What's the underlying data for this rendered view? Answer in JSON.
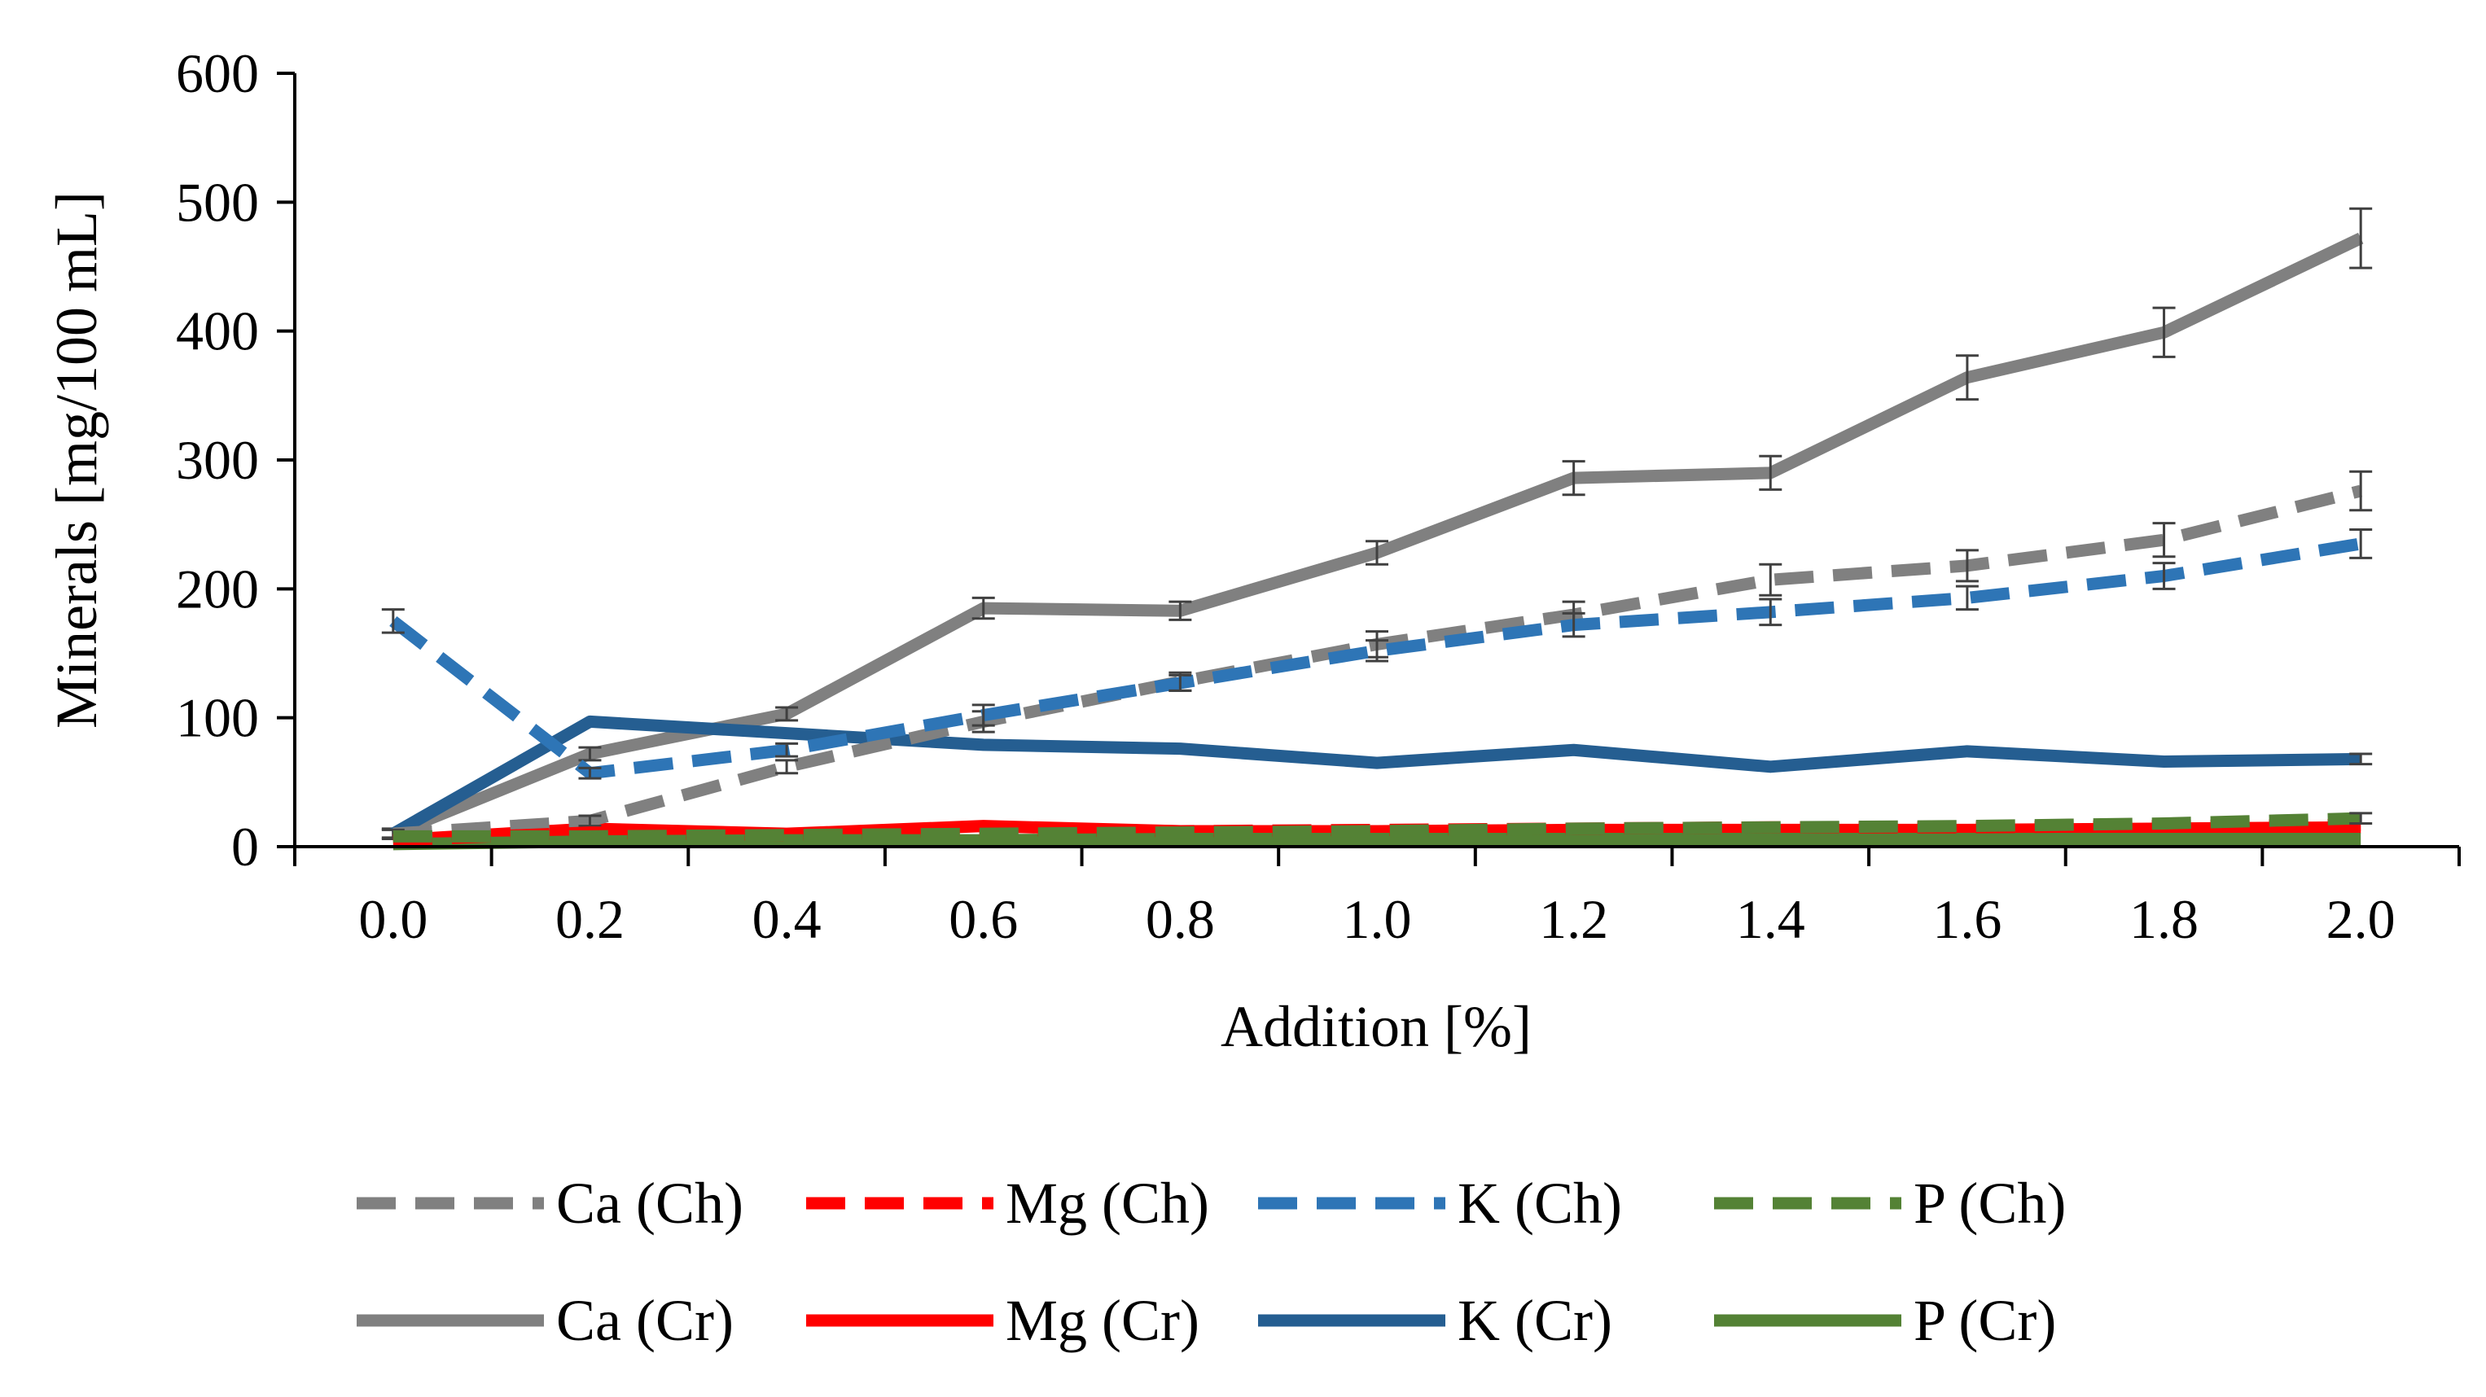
{
  "chart_data": {
    "type": "line",
    "title": "",
    "xlabel": "Addition [%]",
    "ylabel": "Minerals [mg/100 mL]",
    "x": [
      "0.0",
      "0.2",
      "0.4",
      "0.6",
      "0.8",
      "1.0",
      "1.2",
      "1.4",
      "1.6",
      "1.8",
      "2.0"
    ],
    "ylim": [
      0,
      600
    ],
    "yticks": [
      "0",
      "100",
      "200",
      "300",
      "400",
      "500",
      "600"
    ],
    "grid": false,
    "legend_position": "bottom",
    "series": [
      {
        "name": "Ca (Ch)",
        "color": "#808080",
        "dash": true,
        "values": [
          10,
          20,
          62,
          97,
          128,
          157,
          180,
          207,
          218,
          238,
          276
        ],
        "errors": [
          3,
          4,
          5,
          8,
          7,
          10,
          10,
          12,
          12,
          13,
          15
        ]
      },
      {
        "name": "Mg (Ch)",
        "color": "#ff0000",
        "dash": true,
        "values": [
          5,
          11,
          9,
          13,
          12,
          13,
          14,
          15,
          15,
          16,
          17
        ],
        "errors": [
          0,
          0,
          0,
          0,
          0,
          0,
          0,
          0,
          0,
          0,
          0
        ]
      },
      {
        "name": "K (Ch)",
        "color": "#2e75b6",
        "dash": true,
        "values": [
          175,
          57,
          75,
          102,
          127,
          152,
          172,
          182,
          193,
          210,
          235
        ],
        "errors": [
          9,
          4,
          5,
          8,
          6,
          8,
          9,
          10,
          9,
          10,
          11
        ]
      },
      {
        "name": "P (Ch)",
        "color": "#548235",
        "dash": true,
        "values": [
          8,
          8,
          9,
          10,
          11,
          12,
          14,
          15,
          16,
          18,
          22
        ],
        "errors": [
          0,
          0,
          0,
          0,
          0,
          0,
          0,
          0,
          0,
          0,
          4
        ]
      },
      {
        "name": "Ca (Cr)",
        "color": "#808080",
        "dash": false,
        "values": [
          10,
          72,
          103,
          185,
          183,
          228,
          286,
          290,
          364,
          399,
          472
        ],
        "errors": [
          4,
          5,
          5,
          8,
          7,
          9,
          13,
          13,
          17,
          19,
          23
        ]
      },
      {
        "name": "Mg (Cr)",
        "color": "#ff0000",
        "dash": false,
        "values": [
          5,
          14,
          10,
          16,
          12,
          12,
          13,
          13,
          13,
          14,
          15
        ],
        "errors": [
          0,
          0,
          0,
          0,
          0,
          0,
          0,
          0,
          0,
          0,
          0
        ]
      },
      {
        "name": "K (Cr)",
        "color": "#255e91",
        "dash": false,
        "values": [
          10,
          97,
          88,
          79,
          76,
          65,
          75,
          62,
          74,
          66,
          68
        ],
        "errors": [
          0,
          0,
          0,
          0,
          0,
          0,
          0,
          0,
          0,
          0,
          4
        ]
      },
      {
        "name": "P (Cr)",
        "color": "#548235",
        "dash": false,
        "values": [
          2,
          4,
          5,
          5,
          6,
          6,
          6,
          6,
          6,
          6,
          6
        ],
        "errors": [
          0,
          0,
          0,
          0,
          0,
          0,
          0,
          0,
          0,
          0,
          0
        ]
      }
    ],
    "legend": [
      [
        "Ca (Ch)",
        "Mg (Ch)",
        "K (Ch)",
        "P (Ch)"
      ],
      [
        "Ca (Cr)",
        "Mg (Cr)",
        "K (Cr)",
        "P (Cr)"
      ]
    ]
  }
}
